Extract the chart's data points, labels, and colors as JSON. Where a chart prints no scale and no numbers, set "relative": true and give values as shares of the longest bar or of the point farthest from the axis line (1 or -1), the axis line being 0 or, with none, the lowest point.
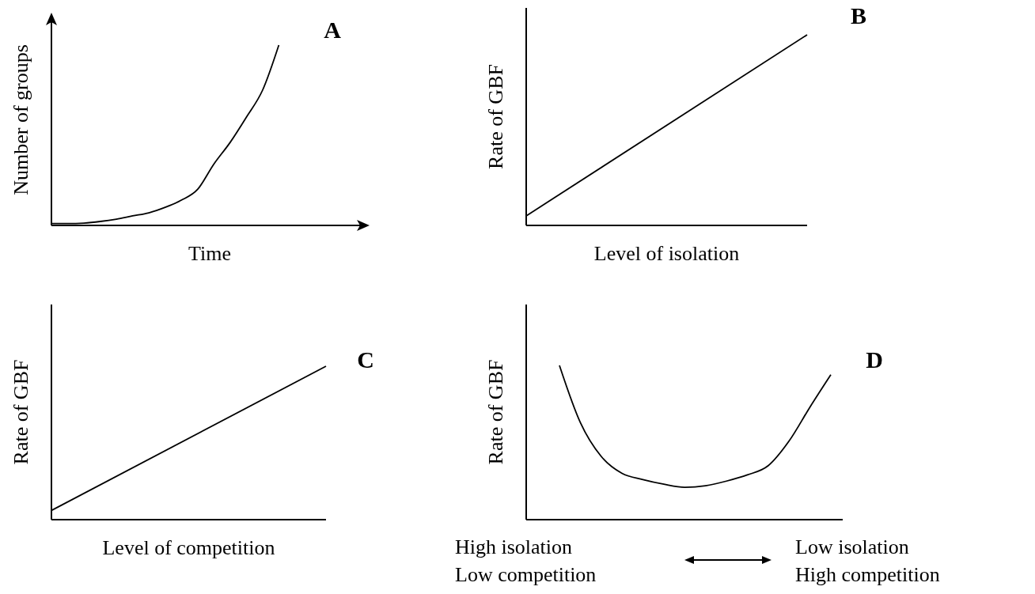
{
  "chart_data": [
    {
      "type": "line",
      "relative": true,
      "xlabel": "Time",
      "ylabel": "Number of groups",
      "annotations": [
        "A"
      ],
      "categories": [
        null,
        null,
        null,
        null,
        null,
        null,
        null,
        null,
        null,
        null,
        null,
        null,
        null,
        null,
        null,
        null,
        null,
        null,
        null,
        null
      ],
      "series": [
        {
          "color": "#000000",
          "values": [
            0.01,
            0.01,
            0.013,
            0.022,
            0.035,
            0.053,
            0.07,
            0.1,
            0.14,
            0.2,
            0.34,
            0.46,
            0.6,
            0.75,
            1,
            null,
            null,
            null,
            null,
            null
          ]
        }
      ]
    },
    {
      "type": "line",
      "relative": true,
      "xlabel": "Level of isolation",
      "ylabel": "Rate of GBF",
      "annotations": [
        "B"
      ],
      "categories": [
        null,
        null
      ],
      "series": [
        {
          "color": "#000000",
          "values": [
            0.05,
            1
          ]
        }
      ]
    },
    {
      "type": "line",
      "relative": true,
      "xlabel": "Level of competition",
      "ylabel": "Rate of GBF",
      "annotations": [
        "C"
      ],
      "categories": [
        null,
        null
      ],
      "series": [
        {
          "color": "#000000",
          "values": [
            0.06,
            1
          ]
        }
      ]
    },
    {
      "type": "line",
      "relative": true,
      "ylabel": "Rate of GBF",
      "annotations": [
        "D",
        "High isolation",
        "Low competition",
        "Low isolation",
        "High competition"
      ],
      "categories": [
        null,
        null,
        null,
        null,
        null,
        null,
        null,
        null,
        null,
        null,
        null,
        null,
        null,
        null
      ],
      "series": [
        {
          "color": "#000000",
          "values": [
            1,
            0.63,
            0.41,
            0.3,
            0.26,
            0.23,
            0.21,
            0.22,
            0.25,
            0.29,
            0.35,
            0.51,
            0.73,
            0.94
          ]
        }
      ]
    }
  ]
}
